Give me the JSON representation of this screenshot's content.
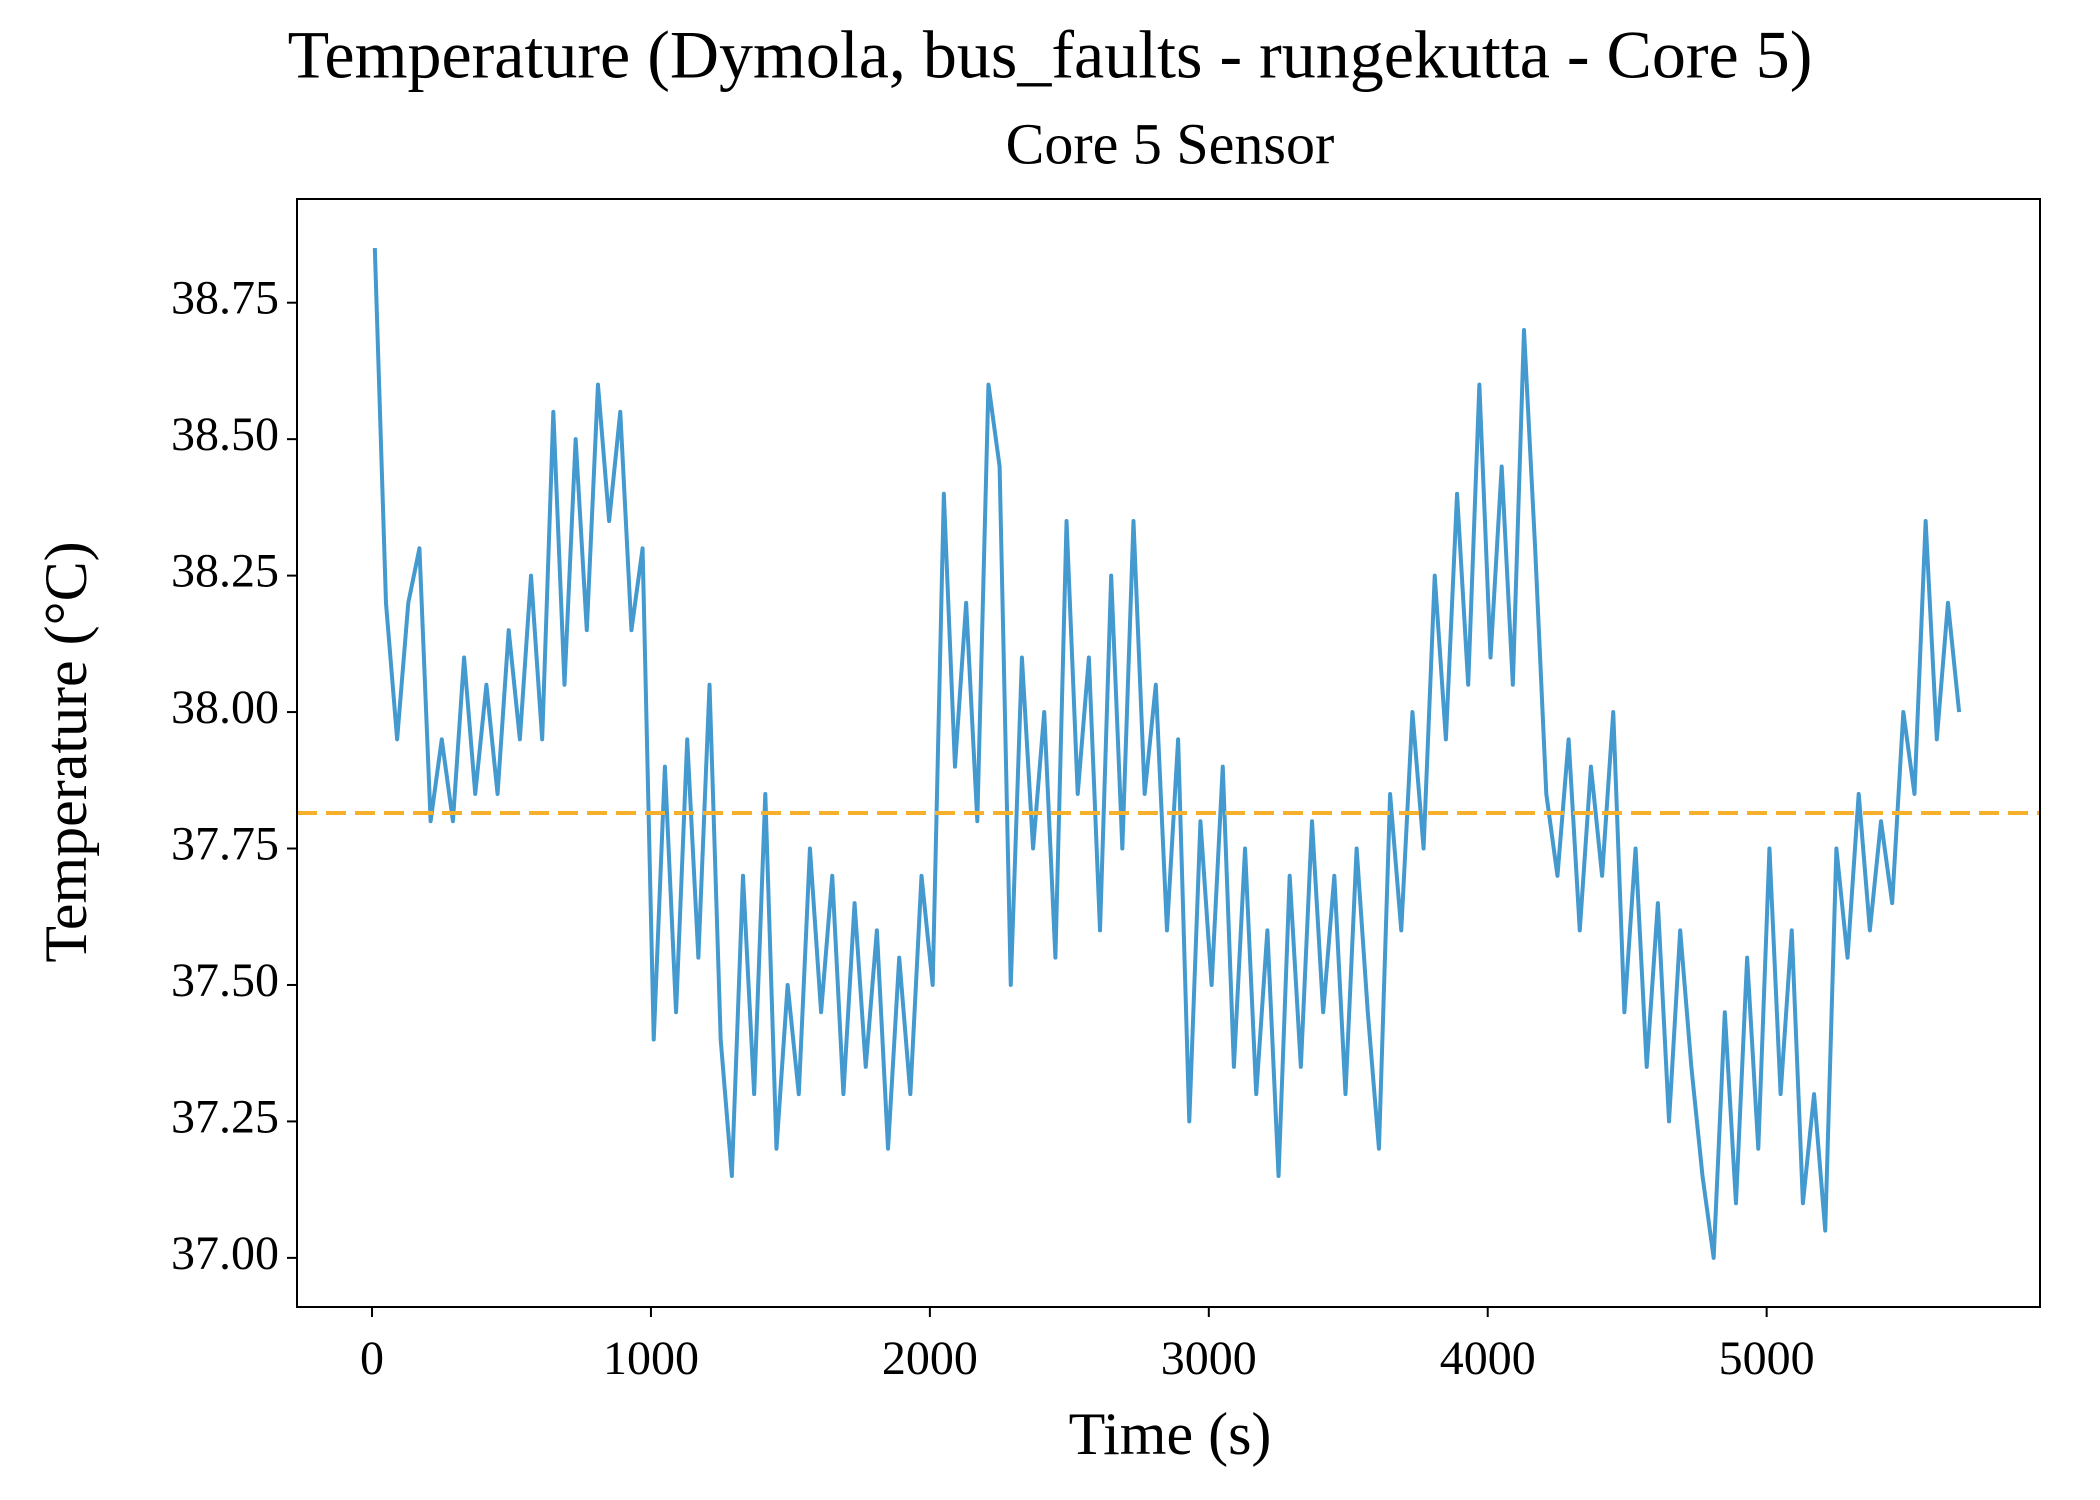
{
  "chart_data": {
    "type": "line",
    "title": "Temperature (Dymola, bus_faults - rungekutta - Core 5)",
    "subtitle": "Core 5 Sensor",
    "x_label": "Time (s)",
    "y_label": "Temperature (°C)",
    "color": "#4499cf",
    "x": [
      10,
      50,
      90,
      130,
      170,
      210,
      250,
      290,
      330,
      370,
      410,
      450,
      490,
      530,
      570,
      610,
      650,
      690,
      730,
      770,
      810,
      850,
      890,
      930,
      970,
      1010,
      1050,
      1090,
      1130,
      1170,
      1210,
      1250,
      1290,
      1330,
      1370,
      1410,
      1450,
      1490,
      1530,
      1570,
      1610,
      1650,
      1690,
      1730,
      1770,
      1810,
      1850,
      1890,
      1930,
      1970,
      2010,
      2050,
      2090,
      2130,
      2170,
      2210,
      2250,
      2290,
      2330,
      2370,
      2410,
      2450,
      2490,
      2530,
      2570,
      2610,
      2650,
      2690,
      2730,
      2770,
      2810,
      2850,
      2890,
      2930,
      2970,
      3010,
      3050,
      3090,
      3130,
      3170,
      3210,
      3250,
      3290,
      3330,
      3370,
      3410,
      3450,
      3490,
      3530,
      3570,
      3610,
      3650,
      3690,
      3730,
      3770,
      3810,
      3850,
      3890,
      3930,
      3970,
      4010,
      4050,
      4090,
      4130,
      4170,
      4210,
      4250,
      4290,
      4330,
      4370,
      4410,
      4450,
      4490,
      4530,
      4570,
      4610,
      4650,
      4690,
      4730,
      4770,
      4810,
      4850,
      4890,
      4930,
      4970,
      5010,
      5050,
      5090,
      5130,
      5170,
      5210,
      5250,
      5290,
      5330,
      5370,
      5410,
      5450,
      5490,
      5530,
      5570,
      5610,
      5650,
      5690
    ],
    "values": [
      38.85,
      38.2,
      37.95,
      38.2,
      38.3,
      37.8,
      37.95,
      37.8,
      38.1,
      37.85,
      38.05,
      37.85,
      38.15,
      37.95,
      38.25,
      37.95,
      38.55,
      38.05,
      38.5,
      38.15,
      38.6,
      38.35,
      38.55,
      38.15,
      38.3,
      37.4,
      37.9,
      37.45,
      37.95,
      37.55,
      38.05,
      37.4,
      37.15,
      37.7,
      37.3,
      37.85,
      37.2,
      37.5,
      37.3,
      37.75,
      37.45,
      37.7,
      37.3,
      37.65,
      37.35,
      37.6,
      37.2,
      37.55,
      37.3,
      37.7,
      37.5,
      38.4,
      37.9,
      38.2,
      37.8,
      38.6,
      38.45,
      37.5,
      38.1,
      37.75,
      38.0,
      37.55,
      38.35,
      37.85,
      38.1,
      37.6,
      38.25,
      37.75,
      38.35,
      37.85,
      38.05,
      37.6,
      37.95,
      37.25,
      37.8,
      37.5,
      37.9,
      37.35,
      37.75,
      37.3,
      37.6,
      37.15,
      37.7,
      37.35,
      37.8,
      37.45,
      37.7,
      37.3,
      37.75,
      37.45,
      37.2,
      37.85,
      37.6,
      38.0,
      37.75,
      38.25,
      37.95,
      38.4,
      38.05,
      38.6,
      38.1,
      38.45,
      38.05,
      38.7,
      38.3,
      37.85,
      37.7,
      37.95,
      37.6,
      37.9,
      37.7,
      38.0,
      37.45,
      37.75,
      37.35,
      37.65,
      37.25,
      37.6,
      37.35,
      37.15,
      37.0,
      37.45,
      37.1,
      37.55,
      37.2,
      37.75,
      37.3,
      37.6,
      37.1,
      37.3,
      37.05,
      37.75,
      37.55,
      37.85,
      37.6,
      37.8,
      37.65,
      38.0,
      37.85,
      38.35,
      37.95,
      38.2,
      38.0
    ],
    "reference_line": {
      "value": 37.815,
      "color": "#f7b02c",
      "dashed": true
    },
    "xlim": [
      -269,
      5980
    ],
    "ylim": [
      36.91,
      38.94
    ],
    "xticks": [
      0,
      1000,
      2000,
      3000,
      4000,
      5000
    ],
    "yticks": [
      {
        "value": 37,
        "label": "37.00"
      },
      {
        "value": 37.25,
        "label": "37.25"
      },
      {
        "value": 37.5,
        "label": "37.50"
      },
      {
        "value": 37.75,
        "label": "37.75"
      },
      {
        "value": 38,
        "label": "38.00"
      },
      {
        "value": 38.25,
        "label": "38.25"
      },
      {
        "value": 38.5,
        "label": "38.50"
      },
      {
        "value": 38.75,
        "label": "38.75"
      }
    ],
    "grid": false
  }
}
